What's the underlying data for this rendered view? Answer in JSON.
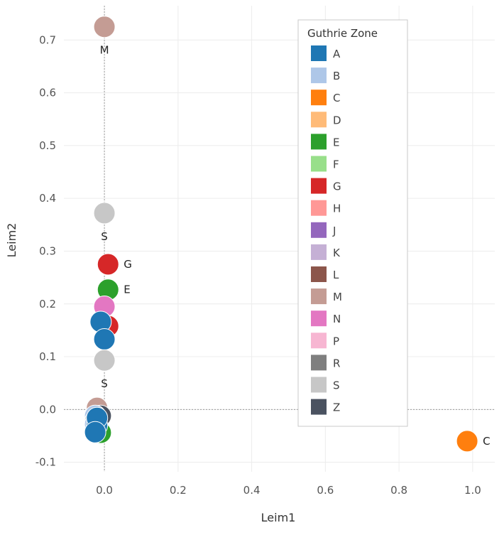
{
  "chart_data": {
    "type": "scatter",
    "xlabel": "Leim1",
    "ylabel": "Leim2",
    "xlim": [
      -0.11,
      1.06
    ],
    "ylim": [
      -0.118,
      0.765
    ],
    "x_ticks": [
      "0.0",
      "0.2",
      "0.4",
      "0.6",
      "0.8",
      "1.0"
    ],
    "y_ticks": [
      "-0.1",
      "0.0",
      "0.1",
      "0.2",
      "0.3",
      "0.4",
      "0.5",
      "0.6",
      "0.7"
    ],
    "x_tick_values": [
      0.0,
      0.2,
      0.4,
      0.6,
      0.8,
      1.0
    ],
    "y_tick_values": [
      -0.1,
      0.0,
      0.1,
      0.2,
      0.3,
      0.4,
      0.5,
      0.6,
      0.7
    ],
    "grid": true,
    "zero_lines": true,
    "legend": {
      "title": "Guthrie Zone",
      "position": "top-right",
      "entries": [
        {
          "label": "A",
          "color": "#1f77b4"
        },
        {
          "label": "B",
          "color": "#aec7e8"
        },
        {
          "label": "C",
          "color": "#ff7f0e"
        },
        {
          "label": "D",
          "color": "#ffbb78"
        },
        {
          "label": "E",
          "color": "#2ca02c"
        },
        {
          "label": "F",
          "color": "#98df8a"
        },
        {
          "label": "G",
          "color": "#d62728"
        },
        {
          "label": "H",
          "color": "#ff9896"
        },
        {
          "label": "J",
          "color": "#9467bd"
        },
        {
          "label": "K",
          "color": "#c5b0d5"
        },
        {
          "label": "L",
          "color": "#8c564b"
        },
        {
          "label": "M",
          "color": "#c49c94"
        },
        {
          "label": "N",
          "color": "#e377c2"
        },
        {
          "label": "P",
          "color": "#f7b6d2"
        },
        {
          "label": "R",
          "color": "#7f7f7f"
        },
        {
          "label": "S",
          "color": "#c7c7c7"
        },
        {
          "label": "Z",
          "color": "#4a5260"
        }
      ]
    },
    "points": [
      {
        "zone": "M",
        "x": 0.0,
        "y": 0.725,
        "label": "M",
        "label_pos": "below"
      },
      {
        "zone": "S",
        "x": 0.0,
        "y": 0.372,
        "label": "S",
        "label_pos": "below"
      },
      {
        "zone": "G",
        "x": 0.01,
        "y": 0.275,
        "label": "G",
        "label_pos": "right"
      },
      {
        "zone": "E",
        "x": 0.01,
        "y": 0.227,
        "label": "E",
        "label_pos": "right"
      },
      {
        "zone": "N",
        "x": 0.0,
        "y": 0.195,
        "label": "",
        "label_pos": ""
      },
      {
        "zone": "G",
        "x": 0.01,
        "y": 0.158,
        "label": "",
        "label_pos": ""
      },
      {
        "zone": "A",
        "x": -0.01,
        "y": 0.166,
        "label": "",
        "label_pos": ""
      },
      {
        "zone": "A",
        "x": 0.0,
        "y": 0.133,
        "label": "",
        "label_pos": ""
      },
      {
        "zone": "S",
        "x": 0.0,
        "y": 0.093,
        "label": "S",
        "label_pos": "below"
      },
      {
        "zone": "M",
        "x": -0.02,
        "y": 0.003,
        "label": "",
        "label_pos": ""
      },
      {
        "zone": "Z",
        "x": -0.01,
        "y": -0.012,
        "label": "",
        "label_pos": ""
      },
      {
        "zone": "B",
        "x": -0.025,
        "y": -0.012,
        "label": "",
        "label_pos": ""
      },
      {
        "zone": "S",
        "x": -0.025,
        "y": -0.022,
        "label": "",
        "label_pos": ""
      },
      {
        "zone": "E",
        "x": -0.01,
        "y": -0.044,
        "label": "",
        "label_pos": ""
      },
      {
        "zone": "B",
        "x": -0.025,
        "y": -0.028,
        "label": "",
        "label_pos": ""
      },
      {
        "zone": "A",
        "x": -0.02,
        "y": -0.03,
        "label": "",
        "label_pos": ""
      },
      {
        "zone": "A",
        "x": -0.02,
        "y": -0.016,
        "label": "",
        "label_pos": ""
      },
      {
        "zone": "A",
        "x": -0.025,
        "y": -0.043,
        "label": "",
        "label_pos": ""
      },
      {
        "zone": "C",
        "x": 0.985,
        "y": -0.06,
        "label": "C",
        "label_pos": "right"
      }
    ]
  }
}
